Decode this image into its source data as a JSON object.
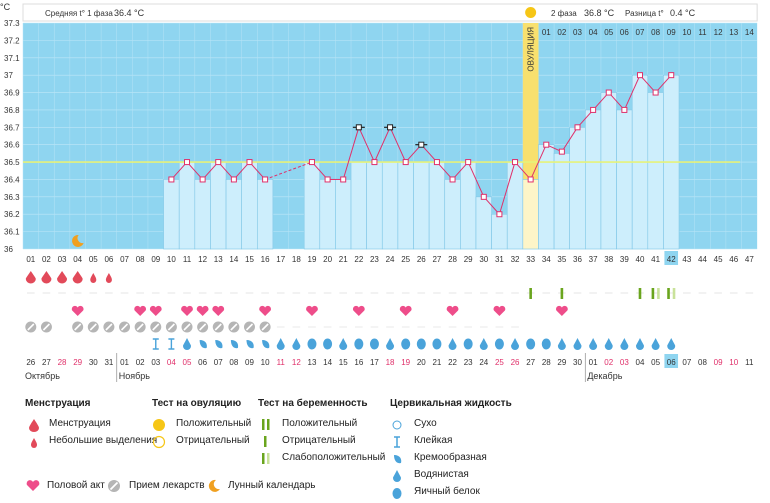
{
  "header": {
    "y_unit": "°C",
    "phase1_label": "Средняя t° 1 фаза",
    "phase1_value": "36.4 °C",
    "phase2_label": "2 фаза",
    "phase2_value": "36.8 °C",
    "diff_label": "Разница t°",
    "diff_value": "0.4 °C",
    "ovulation_label": "ОВУЛЯЦИЯ"
  },
  "chart_data": {
    "type": "line",
    "ylim": [
      36.0,
      37.3
    ],
    "yticks": [
      "36",
      "36.1",
      "36.2",
      "36.3",
      "36.4",
      "36.5",
      "36.6",
      "36.7",
      "36.8",
      "36.9",
      "37",
      "37.1",
      "37.2",
      "37.3"
    ],
    "coverline": 36.5,
    "ovulation_day": 33,
    "top_day_labels_phase2": [
      "01",
      "02",
      "03",
      "04",
      "05",
      "06",
      "07",
      "08",
      "09",
      "10",
      "11",
      "12",
      "13",
      "14"
    ],
    "cycle_days": [
      "01",
      "02",
      "03",
      "04",
      "05",
      "06",
      "07",
      "08",
      "09",
      "10",
      "11",
      "12",
      "13",
      "14",
      "15",
      "16",
      "17",
      "18",
      "19",
      "20",
      "21",
      "22",
      "23",
      "24",
      "25",
      "26",
      "27",
      "28",
      "29",
      "30",
      "31",
      "32",
      "33",
      "34",
      "35",
      "36",
      "37",
      "38",
      "39",
      "40",
      "41",
      "42",
      "43",
      "44",
      "45",
      "46",
      "47"
    ],
    "current_day": "42",
    "temperatures": [
      null,
      null,
      null,
      null,
      null,
      null,
      null,
      null,
      null,
      36.4,
      36.5,
      36.4,
      36.5,
      36.4,
      36.5,
      36.4,
      null,
      null,
      36.5,
      36.4,
      36.4,
      36.5,
      36.5,
      36.5,
      36.5,
      36.5,
      36.5,
      36.4,
      36.5,
      36.3,
      36.2,
      36.5,
      36.4,
      36.6,
      36.55,
      36.7,
      36.8,
      36.9,
      36.8,
      37.0,
      36.9,
      37.0,
      null,
      null,
      null,
      null,
      null
    ],
    "plotted_markers": [
      null,
      null,
      null,
      null,
      null,
      null,
      null,
      null,
      null,
      36.4,
      36.5,
      36.4,
      36.5,
      36.4,
      36.5,
      36.4,
      null,
      null,
      36.5,
      36.4,
      36.4,
      36.7,
      36.5,
      36.7,
      36.5,
      36.6,
      36.5,
      36.4,
      36.5,
      36.3,
      36.2,
      36.5,
      36.4,
      36.6,
      36.56,
      36.7,
      36.8,
      36.9,
      36.8,
      37.0,
      36.9,
      37.0,
      null,
      null,
      null,
      null,
      null
    ],
    "excluded_days": [
      22,
      24,
      26
    ],
    "dashed_segments": [
      [
        16,
        19
      ]
    ],
    "moon_day": 4,
    "menstruation": {
      "heavy": [
        1,
        2,
        3,
        4
      ],
      "light": [
        5,
        6
      ]
    },
    "intercourse_days": [
      4,
      8,
      9,
      11,
      12,
      13,
      16,
      19,
      22,
      25,
      28,
      31,
      35
    ],
    "pregnancy_tests": {
      "positive": [],
      "negative": [
        33,
        35,
        40
      ],
      "weak": [
        41,
        42
      ]
    },
    "medication_days": [
      1,
      2,
      4,
      5,
      6,
      7,
      8,
      9,
      10,
      11,
      12,
      13,
      14,
      15,
      16
    ],
    "fluid": [
      null,
      null,
      null,
      null,
      null,
      null,
      null,
      null,
      "sticky",
      "sticky",
      "water",
      "creamy",
      "creamy",
      "creamy",
      "creamy",
      "creamy",
      "water",
      "water",
      "egg",
      "egg",
      "water",
      "egg",
      "egg",
      "water",
      "egg",
      "egg",
      "egg",
      "water",
      "egg",
      "water",
      "egg",
      "water",
      "egg",
      "egg",
      "water",
      "water",
      "water",
      "water",
      "water",
      "water",
      "water",
      "water",
      null,
      null,
      null,
      null,
      null
    ],
    "calendar_dates": [
      "26",
      "27",
      "28",
      "29",
      "30",
      "31",
      "01",
      "02",
      "03",
      "04",
      "05",
      "06",
      "07",
      "08",
      "09",
      "10",
      "11",
      "12",
      "13",
      "14",
      "15",
      "16",
      "17",
      "18",
      "19",
      "20",
      "21",
      "22",
      "23",
      "24",
      "25",
      "26",
      "27",
      "28",
      "29",
      "30",
      "01",
      "02",
      "03",
      "04",
      "05",
      "06",
      "07",
      "08",
      "09",
      "10",
      "11"
    ],
    "weekend_days": [
      3,
      4,
      10,
      11,
      17,
      18,
      24,
      25,
      31,
      32,
      38,
      39,
      45,
      46
    ],
    "months": [
      {
        "label": "Октябрь",
        "day": 1
      },
      {
        "label": "Ноябрь",
        "day": 7
      },
      {
        "label": "Декабрь",
        "day": 37
      }
    ],
    "current_date": "06"
  },
  "legend": {
    "menstruation": {
      "title": "Менструация",
      "heavy": "Менструация",
      "light": "Небольшие выделения"
    },
    "ovulation_test": {
      "title": "Тест на овуляцию",
      "positive": "Положительный",
      "negative": "Отрицательный"
    },
    "pregnancy_test": {
      "title": "Тест на беременность",
      "positive": "Положительный",
      "negative": "Отрицательный",
      "weak": "Слабоположительный"
    },
    "fluid": {
      "title": "Цервикальная жидкость",
      "dry": "Сухо",
      "sticky": "Клейкая",
      "creamy": "Кремообразная",
      "water": "Водянистая",
      "egg": "Яичный белок"
    },
    "intercourse": "Половой акт",
    "medication": "Прием лекарств",
    "lunar": "Лунный календарь"
  },
  "colors": {
    "plot_bg": "#8fd5f0",
    "bar_fill": "#cdeefc",
    "bar_stroke": "#7ec6e6",
    "line": "#e0306a",
    "coverline": "#e6f27a",
    "ovulation": "#f8e06e",
    "drop": "#e24a5a",
    "fluid": "#4aa3da",
    "heart": "#ee4d8a",
    "pill": "#b5b5b5",
    "test": "#8bc13a",
    "weekend": "#e0306a"
  }
}
